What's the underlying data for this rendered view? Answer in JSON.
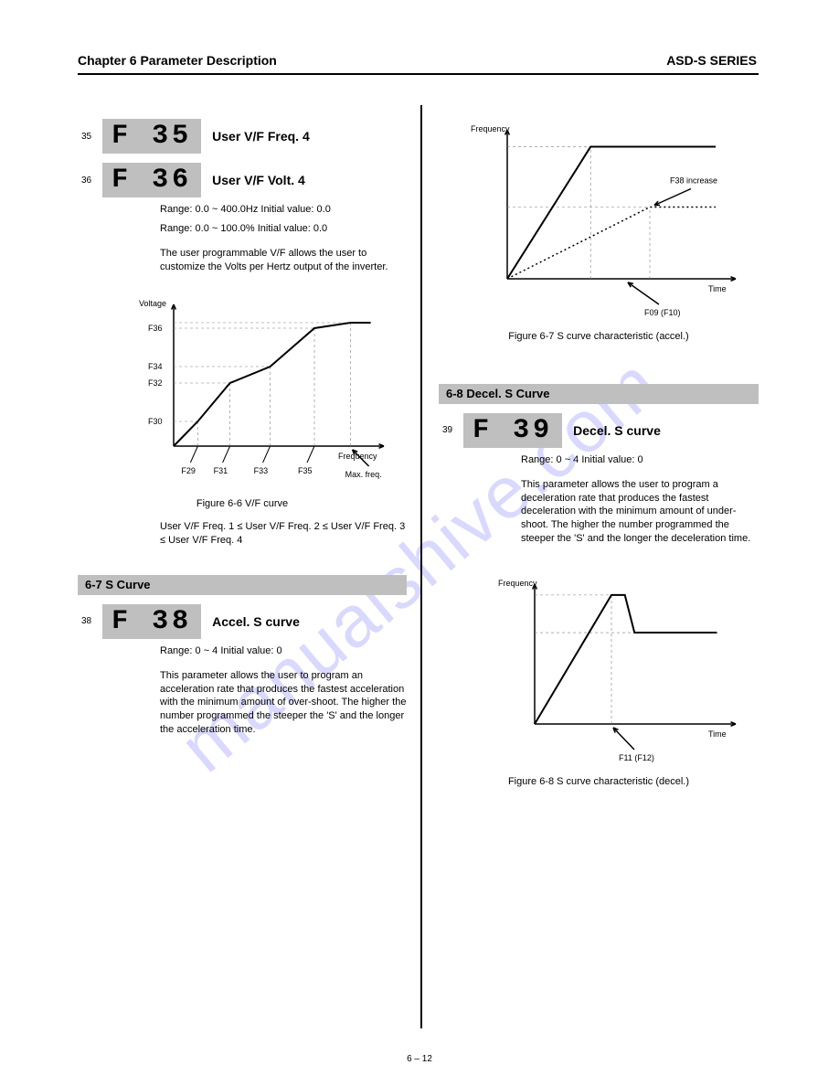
{
  "header": {
    "left": "Chapter 6  Parameter Description",
    "right": "ASD-S SERIES"
  },
  "watermark": "manualshive.com",
  "left": {
    "f35": {
      "lcd": "F 35",
      "title": "User V/F Freq. 4",
      "pno": "35"
    },
    "f36": {
      "lcd": "F 36",
      "title": "User V/F Volt. 4",
      "pno": "36",
      "freq_range": "Range:  0.0 ~ 400.0Hz    Initial value: 0.0",
      "volt_range": "Range:  0.0 ~ 100.0%     Initial value: 0.0",
      "desc": "The user programmable V/F allows the user to customize the Volts per Hertz output of the inverter."
    },
    "chart1": {
      "y_label": "Voltage",
      "x_label": "Frequency",
      "y_ticks": [
        "F30",
        "F32",
        "F34",
        "F36"
      ],
      "x_ticks": [
        "F29",
        "F31",
        "F33",
        "F35"
      ],
      "x_end": "Max. freq.",
      "title_fontsize": 9,
      "line_color": "#000000",
      "grid_color": "#808080",
      "background_color": "#ffffff",
      "points_x": [
        0.12,
        0.28,
        0.48,
        0.7,
        0.88
      ],
      "points_y": [
        0.18,
        0.46,
        0.58,
        0.86,
        0.9
      ]
    },
    "chart1_caption1": "Figure 6-6  V/F curve",
    "chart1_caption2": "User V/F Freq. 1 ≤ User V/F Freq. 2 ≤ User V/F Freq. 3 ≤ User V/F Freq. 4",
    "section": "6-7  S Curve",
    "f38": {
      "lcd": "F 38",
      "title": "Accel. S curve",
      "pno": "38",
      "range": "Range:  0 ~ 4                Initial value: 0",
      "desc": "This parameter allows the user to program an acceleration rate that produces the fastest acceleration with the minimum amount of over-shoot. The higher the number programmed the steeper the 'S' and the longer the acceleration time."
    }
  },
  "right": {
    "chart2": {
      "y_label": "Frequency",
      "x_label": "Time",
      "annot1": "F38 increase",
      "annot2": "F09 (F10)",
      "line_color": "#000000",
      "dash_color": "#000000",
      "grid_color": "#808080",
      "background_color": "#ffffff",
      "solid_x": [
        0.0,
        0.38,
        0.95
      ],
      "solid_y": [
        0.0,
        0.92,
        0.92
      ],
      "dot_x": [
        0.0,
        0.65,
        0.95
      ],
      "dot_y": [
        0.0,
        0.5,
        0.5
      ]
    },
    "chart2_caption": "Figure 6-7  S curve characteristic (accel.)",
    "section": "6-8  Decel. S Curve",
    "f39": {
      "lcd": "F 39",
      "title": "Decel. S curve",
      "pno": "39",
      "range": "Range:  0 ~ 4                Initial value: 0",
      "desc": "This parameter allows the user to program a deceleration rate that produces the fastest deceleration with the minimum amount of under-shoot. The higher the number programmed the steeper the 'S' and the longer the deceleration time."
    },
    "chart3": {
      "y_label": "Frequency",
      "x_label": "Time",
      "annot1": "F11 (F12)",
      "line_color": "#000000",
      "grid_color": "#808080",
      "background_color": "#ffffff",
      "up_x": [
        0.0,
        0.4
      ],
      "up_y": [
        0.0,
        0.96
      ],
      "top_x": [
        0.4,
        0.47
      ],
      "top_y": [
        0.96,
        0.96
      ],
      "down_x": [
        0.47,
        0.52,
        0.95
      ],
      "down_y": [
        0.96,
        0.68,
        0.68
      ]
    },
    "chart3_caption": "Figure 6-8  S curve characteristic (decel.)"
  },
  "footer": "6 – 12"
}
